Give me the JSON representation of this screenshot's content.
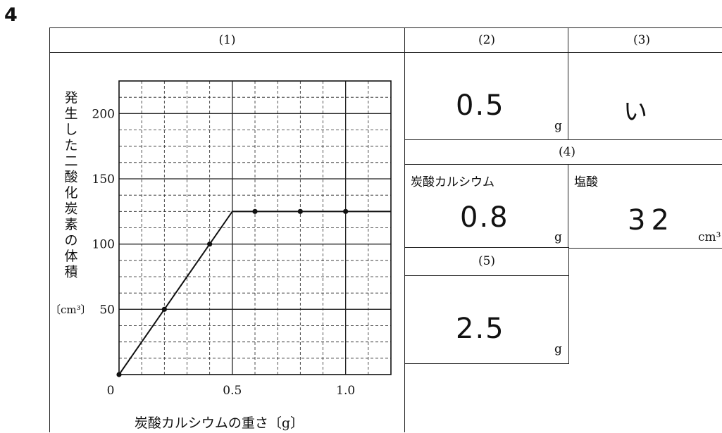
{
  "question_number": "4",
  "headers": {
    "q1": "(1)",
    "q2": "(2)",
    "q3": "(3)",
    "q4": "(4)",
    "q5": "(5)"
  },
  "answers": {
    "q2": {
      "value": "0.5",
      "unit": "g"
    },
    "q3": {
      "value": "い"
    },
    "q4": {
      "calcium_carbonate": {
        "label": "炭酸カルシウム",
        "value": "0.8",
        "unit": "g"
      },
      "hydrochloric_acid": {
        "label": "塩酸",
        "value": "32",
        "unit": "cm³"
      }
    },
    "q5": {
      "value": "2.5",
      "unit": "g"
    }
  },
  "chart_data": {
    "type": "line",
    "title": "",
    "xlabel": "炭酸カルシウムの重さ〔g〕",
    "ylabel": "発生した二酸化炭素の体積",
    "ylabel_unit": "〔cm³〕",
    "xlim": [
      0,
      1.2
    ],
    "ylim": [
      0,
      225
    ],
    "x_ticks": [
      "0",
      "0.5",
      "1.0"
    ],
    "y_ticks": [
      "50",
      "100",
      "150",
      "200"
    ],
    "grid": true,
    "series": [
      {
        "x": [
          0,
          0.5,
          1.2
        ],
        "y": [
          0,
          125,
          125
        ]
      }
    ],
    "points": [
      {
        "x": 0,
        "y": 0
      },
      {
        "x": 0.2,
        "y": 50
      },
      {
        "x": 0.4,
        "y": 100
      },
      {
        "x": 0.6,
        "y": 125
      },
      {
        "x": 0.8,
        "y": 125
      },
      {
        "x": 1.0,
        "y": 125
      }
    ]
  }
}
